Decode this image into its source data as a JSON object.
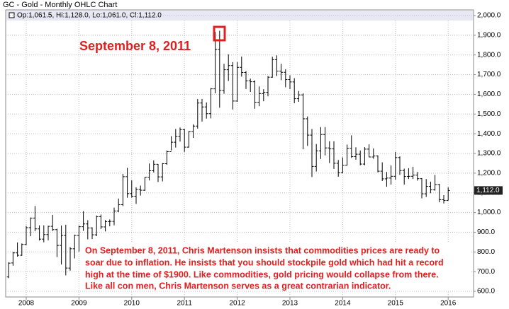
{
  "chart_data": {
    "type": "ohlc",
    "title": "GC - Gold - Monthly OHLC Chart",
    "legend": "Op:1,061.5, Hi:1,128.0, Lo:1,061.0, Cl:1,112.0",
    "last_value_label": "1,112.0",
    "annotation": "September 8, 2011",
    "note": [
      "On September 8, 2011, Chris Martenson insists that commodities prices are ready to",
      "soar due to inflation. He insists that you should stockpile gold which had hit a record",
      "high at the time of $1900. Like commodities, gold pricing would collapse from there.",
      "Like all con men, Chris Martenson serves as a great contrarian indicator."
    ],
    "color": "#000000",
    "grid": true,
    "categories": [
      null,
      null,
      null,
      null,
      "2008",
      null,
      null,
      null,
      null,
      null,
      null,
      null,
      null,
      null,
      null,
      null,
      "2009",
      null,
      null,
      null,
      null,
      null,
      null,
      null,
      null,
      null,
      null,
      null,
      "2010",
      null,
      null,
      null,
      null,
      null,
      null,
      null,
      null,
      null,
      null,
      null,
      "2011",
      null,
      null,
      null,
      null,
      null,
      null,
      null,
      null,
      null,
      null,
      null,
      "2012",
      null,
      null,
      null,
      null,
      null,
      null,
      null,
      null,
      null,
      null,
      null,
      "2013",
      null,
      null,
      null,
      null,
      null,
      null,
      null,
      null,
      null,
      null,
      null,
      "2014",
      null,
      null,
      null,
      null,
      null,
      null,
      null,
      null,
      null,
      null,
      null,
      "2015",
      null,
      null,
      null,
      null,
      null,
      null,
      null,
      null,
      null,
      null,
      null,
      "2016"
    ],
    "open": [
      673,
      744,
      795,
      783,
      838,
      923,
      972,
      917,
      865,
      888,
      930,
      913,
      833,
      884,
      718,
      816,
      884,
      928,
      942,
      922,
      887,
      979,
      927,
      954,
      955,
      1008,
      1040,
      1182,
      1096,
      1083,
      1118,
      1113,
      1179,
      1212,
      1245,
      1181,
      1248,
      1309,
      1357,
      1386,
      1421,
      1332,
      1411,
      1439,
      1556,
      1536,
      1502,
      1628,
      1828,
      1620,
      1725,
      1746,
      1566,
      1737,
      1711,
      1669,
      1664,
      1560,
      1604,
      1610,
      1687,
      1776,
      1718,
      1712,
      1675,
      1663,
      1578,
      1597,
      1476,
      1393,
      1234,
      1313,
      1396,
      1328,
      1323,
      1250,
      1202,
      1240,
      1326,
      1284,
      1296,
      1246,
      1322,
      1282,
      1287,
      1210,
      1171,
      1175,
      1184,
      1279,
      1213,
      1183,
      1184,
      1190,
      1172,
      1095,
      1133,
      1115,
      1142,
      1065,
      1061.5
    ],
    "high": [
      748,
      800,
      848,
      843,
      932,
      975,
      1033,
      935,
      935,
      933,
      988,
      918,
      934,
      938,
      825,
      888,
      934,
      1007,
      961,
      925,
      985,
      990,
      962,
      965,
      1025,
      1071,
      1196,
      1227,
      1163,
      1128,
      1137,
      1180,
      1249,
      1265,
      1246,
      1251,
      1315,
      1388,
      1424,
      1432,
      1425,
      1414,
      1448,
      1576,
      1577,
      1559,
      1632,
      1917,
      1923,
      1755,
      1803,
      1764,
      1764,
      1792,
      1718,
      1680,
      1671,
      1640,
      1626,
      1693,
      1791,
      1798,
      1755,
      1727,
      1697,
      1682,
      1617,
      1605,
      1488,
      1424,
      1348,
      1434,
      1434,
      1362,
      1362,
      1267,
      1280,
      1345,
      1392,
      1331,
      1315,
      1332,
      1346,
      1325,
      1290,
      1255,
      1206,
      1239,
      1308,
      1285,
      1223,
      1225,
      1232,
      1206,
      1175,
      1170,
      1157,
      1191,
      1146,
      1088,
      1128
    ],
    "low": [
      667,
      730,
      776,
      780,
      835,
      880,
      905,
      858,
      849,
      859,
      906,
      774,
      736,
      681,
      705,
      767,
      802,
      907,
      864,
      865,
      880,
      916,
      904,
      930,
      935,
      1002,
      1033,
      1075,
      1075,
      1044,
      1086,
      1110,
      1163,
      1203,
      1155,
      1158,
      1242,
      1315,
      1330,
      1360,
      1308,
      1330,
      1379,
      1426,
      1462,
      1477,
      1478,
      1605,
      1532,
      1603,
      1668,
      1523,
      1562,
      1690,
      1627,
      1612,
      1527,
      1540,
      1565,
      1590,
      1684,
      1693,
      1672,
      1636,
      1626,
      1555,
      1562,
      1321,
      1338,
      1180,
      1208,
      1272,
      1290,
      1251,
      1221,
      1182,
      1200,
      1239,
      1277,
      1268,
      1240,
      1240,
      1281,
      1273,
      1204,
      1160,
      1131,
      1142,
      1167,
      1191,
      1142,
      1170,
      1170,
      1162,
      1072,
      1079,
      1098,
      1111,
      1052,
      1046,
      1061
    ],
    "close": [
      743,
      795,
      783,
      838,
      923,
      972,
      917,
      865,
      888,
      930,
      913,
      833,
      884,
      718,
      816,
      884,
      928,
      942,
      922,
      887,
      979,
      927,
      954,
      955,
      1008,
      1040,
      1182,
      1096,
      1083,
      1118,
      1113,
      1179,
      1212,
      1245,
      1181,
      1248,
      1309,
      1357,
      1386,
      1421,
      1332,
      1411,
      1439,
      1556,
      1536,
      1502,
      1628,
      1828,
      1620,
      1725,
      1746,
      1566,
      1737,
      1711,
      1669,
      1664,
      1560,
      1604,
      1610,
      1687,
      1776,
      1718,
      1712,
      1675,
      1663,
      1578,
      1597,
      1476,
      1393,
      1234,
      1313,
      1396,
      1328,
      1323,
      1250,
      1202,
      1240,
      1326,
      1284,
      1296,
      1246,
      1322,
      1282,
      1287,
      1210,
      1171,
      1175,
      1184,
      1279,
      1213,
      1183,
      1184,
      1190,
      1172,
      1095,
      1133,
      1115,
      1142,
      1065,
      1061,
      1112
    ],
    "ylim": [
      600,
      2000
    ],
    "yticks": [
      {
        "value": 600,
        "label": "600.0"
      },
      {
        "value": 700,
        "label": "700.0"
      },
      {
        "value": 800,
        "label": "800.0"
      },
      {
        "value": 900,
        "label": "900.0"
      },
      {
        "value": 1000,
        "label": "1,000.0"
      },
      {
        "value": 1100,
        "label": "1,100.0"
      },
      {
        "value": 1200,
        "label": "1,200.0"
      },
      {
        "value": 1300,
        "label": "1,300.0"
      },
      {
        "value": 1400,
        "label": "1,400.0"
      },
      {
        "value": 1500,
        "label": "1,500.0"
      },
      {
        "value": 1600,
        "label": "1,600.0"
      },
      {
        "value": 1700,
        "label": "1,700.0"
      },
      {
        "value": 1800,
        "label": "1,800.0"
      },
      {
        "value": 1900,
        "label": "1,900.0"
      },
      {
        "value": 2000,
        "label": "2,000.0"
      }
    ]
  }
}
